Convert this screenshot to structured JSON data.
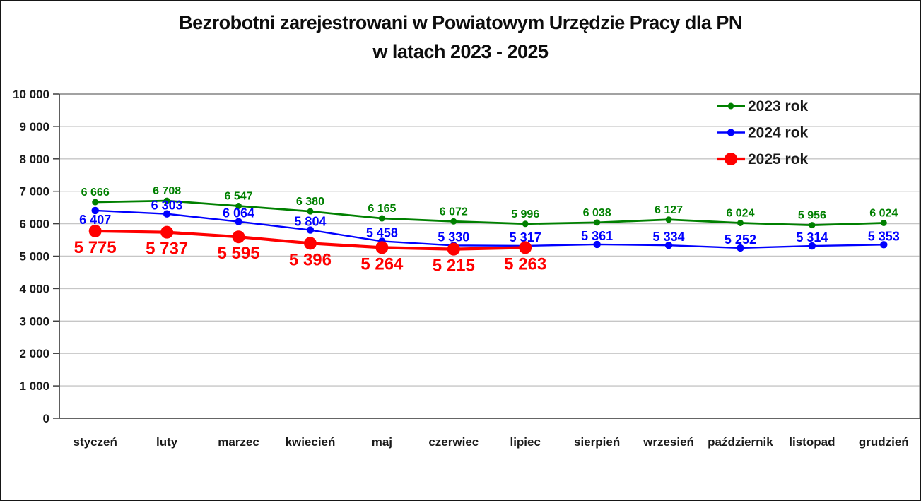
{
  "title": {
    "line1": "Bezrobotni zarejestrowani w Powiatowym Urzędzie Pracy dla PN",
    "line2": "w latach 2023 - 2025"
  },
  "chart_data": {
    "type": "line",
    "categories": [
      "styczeń",
      "luty",
      "marzec",
      "kwiecień",
      "maj",
      "czerwiec",
      "lipiec",
      "sierpień",
      "wrzesień",
      "październik",
      "listopad",
      "grudzień"
    ],
    "series": [
      {
        "name": "2023 rok",
        "color": "#008000",
        "values": [
          6666,
          6708,
          6547,
          6380,
          6165,
          6072,
          5996,
          6038,
          6127,
          6024,
          5956,
          6024
        ]
      },
      {
        "name": "2024 rok",
        "color": "#0000ff",
        "values": [
          6407,
          6303,
          6064,
          5804,
          5458,
          5330,
          5317,
          5361,
          5334,
          5252,
          5314,
          5353
        ]
      },
      {
        "name": "2025 rok",
        "color": "#ff0000",
        "values": [
          5775,
          5737,
          5595,
          5396,
          5264,
          5215,
          5263
        ]
      }
    ],
    "xlabel": "",
    "ylabel": "",
    "ylim": [
      0,
      10000
    ],
    "ytick_step": 1000,
    "grid": true,
    "legend_position": "top-right",
    "number_format": "space-thousands",
    "data_labels": true
  },
  "colors": {
    "background": "#ffffff",
    "grid": "#c6c6c6",
    "axis": "#3f3f3f",
    "frame": "#7f7f7f",
    "text": "#1a1a1a"
  }
}
